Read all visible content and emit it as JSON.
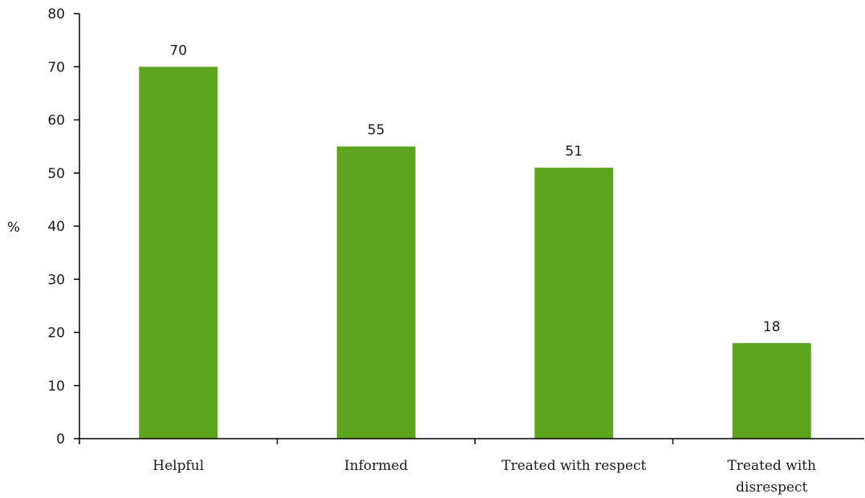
{
  "chart_data": {
    "type": "bar",
    "title": "",
    "xlabel": "",
    "ylabel": "%",
    "ylim": [
      0,
      80
    ],
    "yticks": [
      0,
      10,
      20,
      30,
      40,
      50,
      60,
      70,
      80
    ],
    "grid": false,
    "categories": [
      [
        "Helpful"
      ],
      [
        "Informed"
      ],
      [
        "Treated with respect"
      ],
      [
        "Treated with",
        "disrespect"
      ]
    ],
    "values": [
      70,
      55,
      51,
      18
    ],
    "data_labels": [
      "70",
      "55",
      "51",
      "18"
    ],
    "bar_color": "#5ea51f"
  }
}
